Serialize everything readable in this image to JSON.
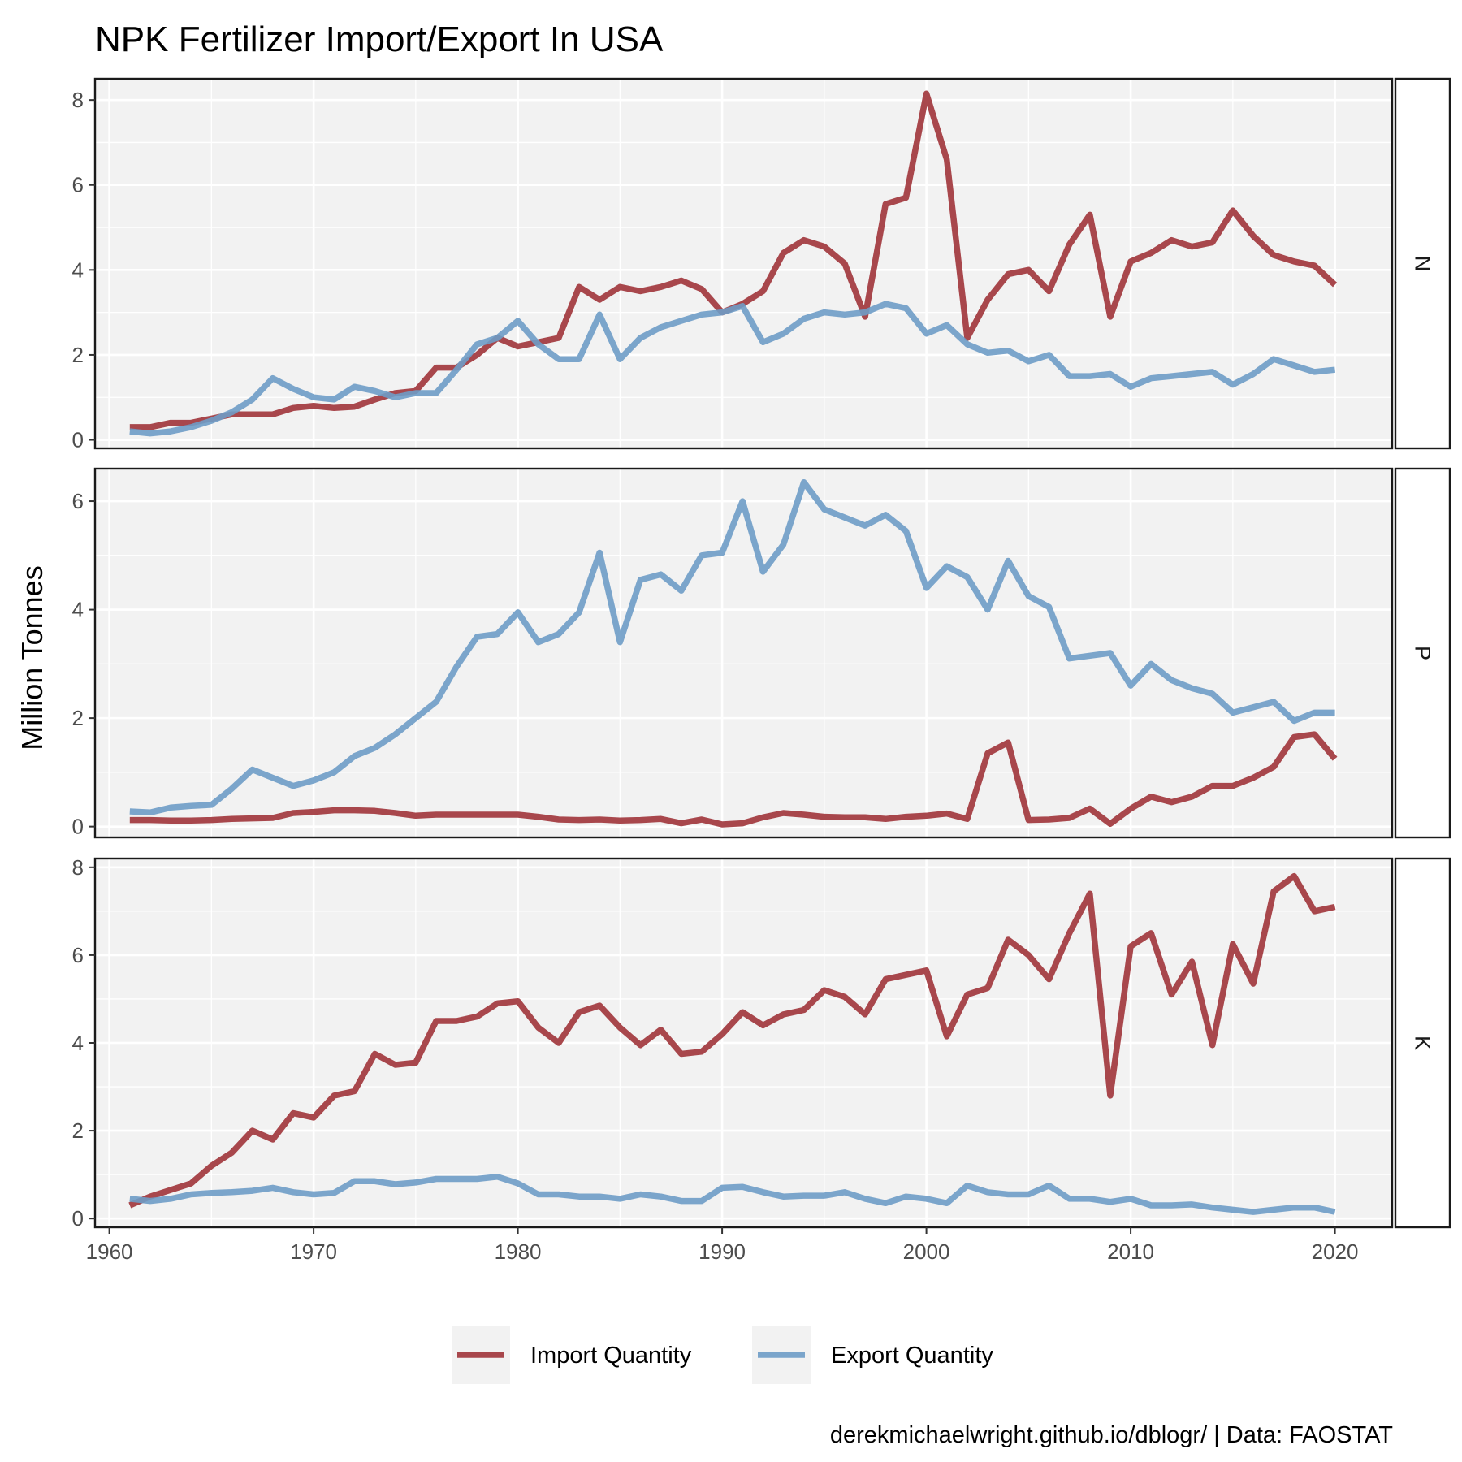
{
  "chart_data": {
    "type": "line",
    "title": "NPK Fertilizer Import/Export In USA",
    "ylabel": "Million Tonnes",
    "xlabel": "",
    "caption": "derekmichaelwright.github.io/dblogr/ | Data: FAOSTAT",
    "legend_position": "bottom",
    "grid": true,
    "xlim": [
      1959.3,
      2022.8
    ],
    "xticks": [
      1960,
      1970,
      1980,
      1990,
      2000,
      2010,
      2020
    ],
    "x_start": 1961,
    "series_meta": [
      {
        "key": "import",
        "name": "Import Quantity",
        "color": "#A0343A"
      },
      {
        "key": "export",
        "name": "Export Quantity",
        "color": "#6E9CC6"
      }
    ],
    "panels": [
      {
        "label": "N",
        "ylim": [
          -0.2,
          8.5
        ],
        "yticks": [
          0,
          2,
          4,
          6,
          8
        ],
        "import": [
          0.3,
          0.3,
          0.4,
          0.4,
          0.5,
          0.6,
          0.6,
          0.6,
          0.75,
          0.8,
          0.75,
          0.78,
          0.95,
          1.1,
          1.15,
          1.7,
          1.7,
          2.0,
          2.4,
          2.2,
          2.3,
          2.4,
          3.6,
          3.3,
          3.6,
          3.5,
          3.6,
          3.75,
          3.55,
          3.0,
          3.2,
          3.5,
          4.4,
          4.7,
          4.55,
          4.15,
          2.9,
          5.55,
          5.7,
          8.15,
          6.6,
          2.4,
          3.3,
          3.9,
          4.0,
          3.5,
          4.6,
          5.3,
          2.9,
          4.2,
          4.4,
          4.7,
          4.55,
          4.65,
          5.4,
          4.8,
          4.35,
          4.2,
          4.1,
          3.65
        ],
        "export": [
          0.2,
          0.15,
          0.2,
          0.3,
          0.45,
          0.65,
          0.95,
          1.45,
          1.2,
          1.0,
          0.95,
          1.25,
          1.15,
          1.0,
          1.1,
          1.1,
          1.65,
          2.25,
          2.4,
          2.8,
          2.25,
          1.9,
          1.9,
          2.95,
          1.9,
          2.4,
          2.65,
          2.8,
          2.95,
          3.0,
          3.15,
          2.3,
          2.5,
          2.85,
          3.0,
          2.95,
          3.0,
          3.2,
          3.1,
          2.5,
          2.7,
          2.25,
          2.05,
          2.1,
          1.85,
          2.0,
          1.5,
          1.5,
          1.55,
          1.25,
          1.45,
          1.5,
          1.55,
          1.6,
          1.3,
          1.55,
          1.9,
          1.75,
          1.6,
          1.65
        ]
      },
      {
        "label": "P",
        "ylim": [
          -0.2,
          6.6
        ],
        "yticks": [
          0,
          2,
          4,
          6
        ],
        "import": [
          0.12,
          0.12,
          0.11,
          0.11,
          0.12,
          0.14,
          0.15,
          0.16,
          0.25,
          0.27,
          0.3,
          0.3,
          0.29,
          0.25,
          0.2,
          0.22,
          0.22,
          0.22,
          0.22,
          0.22,
          0.18,
          0.13,
          0.12,
          0.13,
          0.11,
          0.12,
          0.14,
          0.06,
          0.13,
          0.04,
          0.06,
          0.17,
          0.25,
          0.22,
          0.18,
          0.17,
          0.17,
          0.14,
          0.18,
          0.2,
          0.24,
          0.14,
          1.35,
          1.55,
          0.12,
          0.13,
          0.16,
          0.33,
          0.05,
          0.33,
          0.55,
          0.45,
          0.55,
          0.75,
          0.75,
          0.9,
          1.1,
          1.65,
          1.7,
          1.25
        ],
        "export": [
          0.28,
          0.26,
          0.35,
          0.38,
          0.4,
          0.7,
          1.05,
          0.9,
          0.75,
          0.85,
          1.0,
          1.3,
          1.45,
          1.7,
          2.0,
          2.3,
          2.95,
          3.5,
          3.55,
          3.95,
          3.4,
          3.55,
          3.95,
          5.05,
          3.4,
          4.55,
          4.65,
          4.35,
          5.0,
          5.05,
          6.0,
          4.7,
          5.2,
          6.35,
          5.85,
          5.7,
          5.55,
          5.75,
          5.45,
          4.4,
          4.8,
          4.6,
          4.0,
          4.9,
          4.25,
          4.05,
          3.1,
          3.15,
          3.2,
          2.6,
          3.0,
          2.7,
          2.55,
          2.45,
          2.1,
          2.2,
          2.3,
          1.95,
          2.1,
          2.1
        ]
      },
      {
        "label": "K",
        "ylim": [
          -0.2,
          8.2
        ],
        "yticks": [
          0,
          2,
          4,
          6,
          8
        ],
        "import": [
          0.3,
          0.5,
          0.65,
          0.8,
          1.2,
          1.5,
          2.0,
          1.8,
          2.4,
          2.3,
          2.8,
          2.9,
          3.75,
          3.5,
          3.55,
          4.5,
          4.5,
          4.6,
          4.9,
          4.95,
          4.35,
          4.0,
          4.7,
          4.85,
          4.35,
          3.95,
          4.3,
          3.75,
          3.8,
          4.2,
          4.7,
          4.4,
          4.65,
          4.75,
          5.2,
          5.05,
          4.65,
          5.45,
          5.55,
          5.65,
          4.15,
          5.1,
          5.25,
          6.35,
          6.0,
          5.45,
          6.5,
          7.4,
          2.8,
          6.2,
          6.5,
          5.1,
          5.85,
          3.95,
          6.25,
          5.35,
          7.45,
          7.8,
          7.0,
          7.1
        ],
        "export": [
          0.45,
          0.4,
          0.45,
          0.55,
          0.58,
          0.6,
          0.63,
          0.7,
          0.6,
          0.55,
          0.58,
          0.85,
          0.85,
          0.78,
          0.82,
          0.9,
          0.9,
          0.9,
          0.95,
          0.8,
          0.55,
          0.55,
          0.5,
          0.5,
          0.45,
          0.55,
          0.5,
          0.4,
          0.4,
          0.7,
          0.72,
          0.6,
          0.5,
          0.52,
          0.52,
          0.6,
          0.45,
          0.35,
          0.5,
          0.45,
          0.35,
          0.75,
          0.6,
          0.55,
          0.55,
          0.75,
          0.45,
          0.45,
          0.38,
          0.45,
          0.3,
          0.3,
          0.32,
          0.25,
          0.2,
          0.15,
          0.2,
          0.25,
          0.25,
          0.15
        ]
      }
    ]
  }
}
